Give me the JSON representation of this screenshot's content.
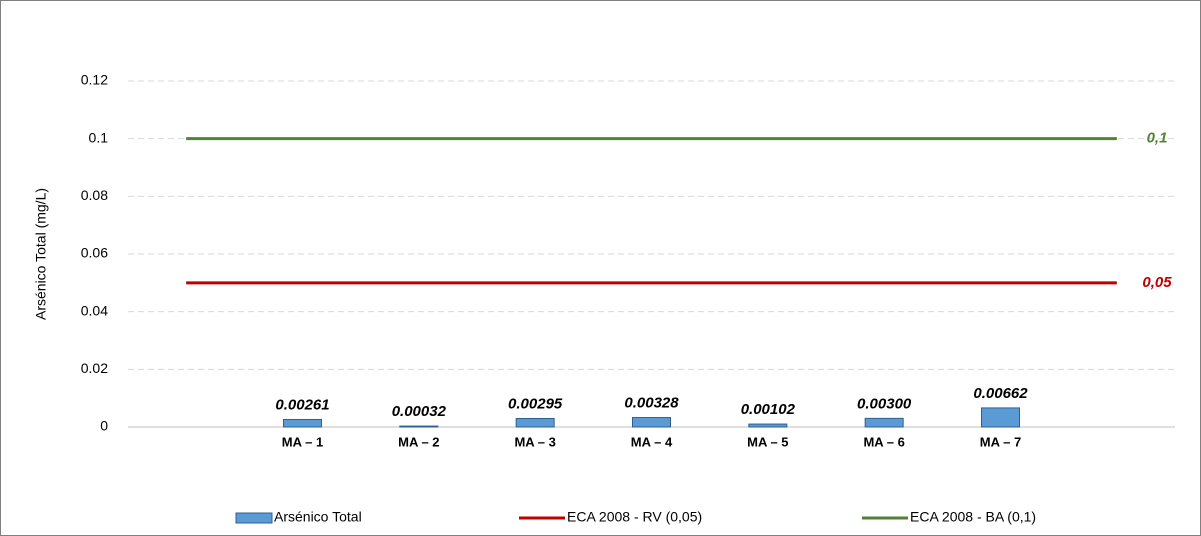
{
  "chart_data": {
    "type": "bar",
    "y_label": "Arsénico Total (mg/L)",
    "categories": [
      null,
      "MA – 1",
      "MA – 2",
      "MA – 3",
      "MA – 4",
      "MA – 5",
      "MA – 6",
      "MA – 7",
      null
    ],
    "series": [
      {
        "name": "Arsénico Total",
        "type": "bar",
        "color": "#5b9bd5",
        "values": [
          null,
          0.00261,
          0.00032,
          0.00295,
          0.00328,
          0.00102,
          0.003,
          0.00662,
          null
        ],
        "value_labels": [
          null,
          "0.00261",
          "0.00032",
          "0.00295",
          "0.00328",
          "0.00102",
          "0.00300",
          "0.00662",
          null
        ]
      },
      {
        "name": "ECA 2008 - RV (0,05)",
        "type": "line",
        "color": "#c00000",
        "values": [
          0.05,
          0.05,
          0.05,
          0.05,
          0.05,
          0.05,
          0.05,
          0.05,
          0.05
        ],
        "value_labels": [
          null,
          null,
          null,
          null,
          null,
          null,
          null,
          null,
          "0,05"
        ]
      },
      {
        "name": "ECA 2008 - BA (0,1)",
        "type": "line",
        "color": "#548235",
        "values": [
          0.1,
          0.1,
          0.1,
          0.1,
          0.1,
          0.1,
          0.1,
          0.1,
          0.1
        ],
        "value_labels": [
          null,
          null,
          null,
          null,
          null,
          null,
          null,
          null,
          "0,1"
        ]
      }
    ],
    "ylim": [
      0,
      0.12
    ],
    "yticks": [
      0,
      0.02,
      0.04,
      0.06,
      0.08,
      0.1,
      0.12
    ],
    "grid": true,
    "legend": "bottom"
  }
}
